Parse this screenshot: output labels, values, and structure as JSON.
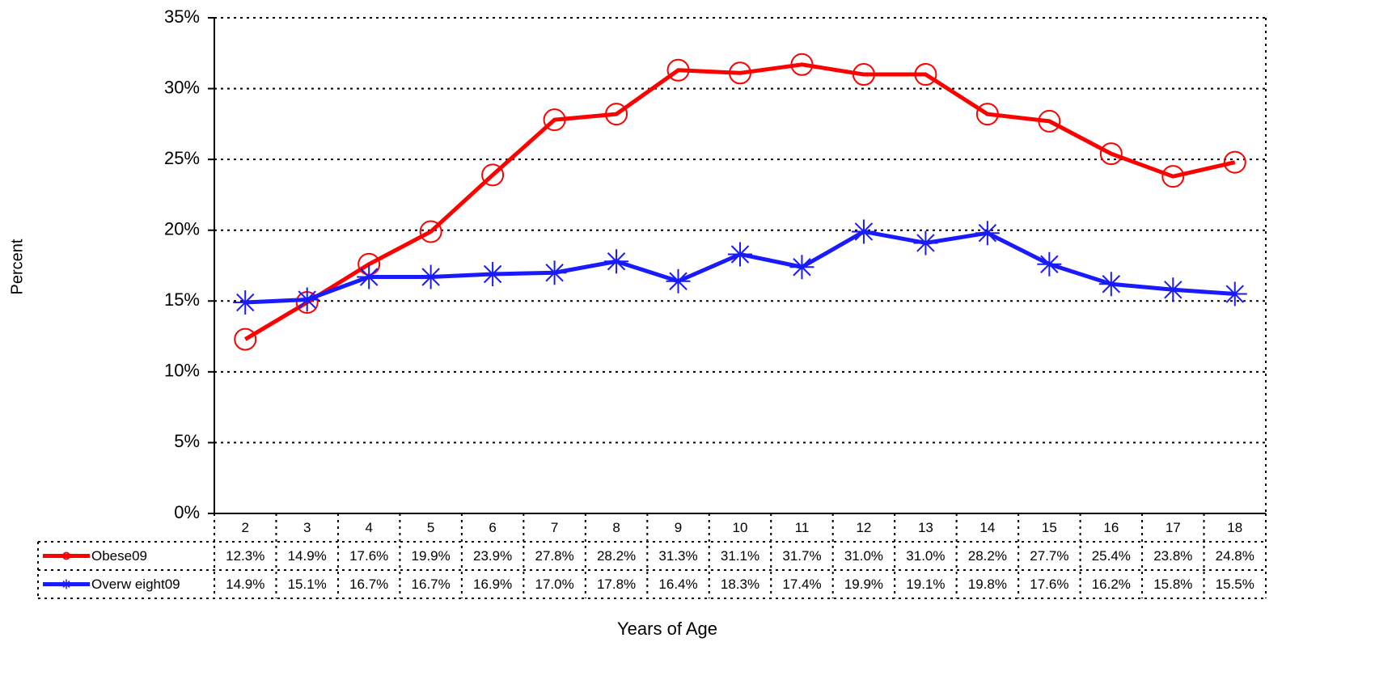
{
  "chart_data": {
    "type": "line",
    "x_label": "Years of Age",
    "y_label": "Percent",
    "categories": [
      "2",
      "3",
      "4",
      "5",
      "6",
      "7",
      "8",
      "9",
      "10",
      "11",
      "12",
      "13",
      "14",
      "15",
      "16",
      "17",
      "18"
    ],
    "series": [
      {
        "name": "Obese09",
        "color": "#ff0000",
        "marker": "circle",
        "values": [
          12.3,
          14.9,
          17.6,
          19.9,
          23.9,
          27.8,
          28.2,
          31.3,
          31.1,
          31.7,
          31.0,
          31.0,
          28.2,
          27.7,
          25.4,
          23.8,
          24.8
        ],
        "value_labels": [
          "12.3%",
          "14.9%",
          "17.6%",
          "19.9%",
          "23.9%",
          "27.8%",
          "28.2%",
          "31.3%",
          "31.1%",
          "31.7%",
          "31.0%",
          "31.0%",
          "28.2%",
          "27.7%",
          "25.4%",
          "23.8%",
          "24.8%"
        ]
      },
      {
        "name": "Overw eight09",
        "color": "#1a1aff",
        "marker": "asterisk",
        "values": [
          14.9,
          15.1,
          16.7,
          16.7,
          16.9,
          17.0,
          17.8,
          16.4,
          18.3,
          17.4,
          19.9,
          19.1,
          19.8,
          17.6,
          16.2,
          15.8,
          15.5
        ],
        "value_labels": [
          "14.9%",
          "15.1%",
          "16.7%",
          "16.7%",
          "16.9%",
          "17.0%",
          "17.8%",
          "16.4%",
          "18.3%",
          "17.4%",
          "19.9%",
          "19.1%",
          "19.8%",
          "17.6%",
          "16.2%",
          "15.8%",
          "15.5%"
        ]
      }
    ],
    "ylim": [
      0,
      35
    ],
    "yticks": [
      {
        "value": 0,
        "label": "0%"
      },
      {
        "value": 5,
        "label": "5%"
      },
      {
        "value": 10,
        "label": "10%"
      },
      {
        "value": 15,
        "label": "15%"
      },
      {
        "value": 20,
        "label": "20%"
      },
      {
        "value": 25,
        "label": "25%"
      },
      {
        "value": 30,
        "label": "30%"
      },
      {
        "value": 35,
        "label": "35%"
      }
    ],
    "grid": true,
    "legend": "table"
  }
}
